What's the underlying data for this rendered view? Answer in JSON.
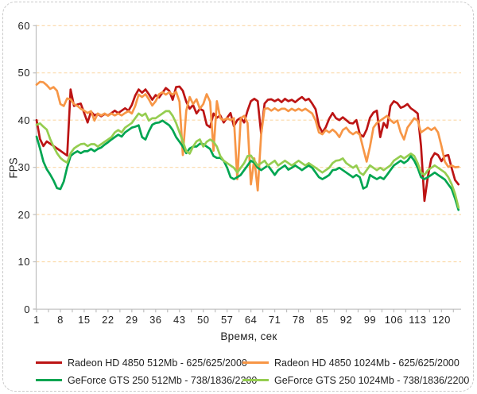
{
  "figure": {
    "background": "#ffffff",
    "border_color": "#c9c9c9",
    "axis_color": "#bfbfbf",
    "gridline_color": "#fbd8a6",
    "text_color": "#1f1f1f"
  },
  "chart_data": {
    "type": "line",
    "title": "",
    "xlabel": "Время, сек",
    "ylabel": "FPS",
    "xlim": [
      1,
      125
    ],
    "ylim": [
      0,
      60
    ],
    "x_ticks": [
      1,
      8,
      15,
      22,
      29,
      36,
      43,
      50,
      57,
      64,
      71,
      78,
      85,
      92,
      99,
      106,
      113,
      120
    ],
    "y_ticks": [
      0,
      10,
      20,
      30,
      40,
      50,
      60
    ],
    "grid": "horizontal-dashed",
    "legend_position": "bottom",
    "x_start": 1,
    "x_step": 1,
    "series": [
      {
        "name": "Radeon HD 4850 512Mb - 625/625/2000",
        "color": "#bc1414",
        "values": [
          40,
          36,
          34.5,
          35.5,
          35,
          34.5,
          34,
          33.5,
          33,
          32.5,
          46.5,
          43,
          43.3,
          43.5,
          41.5,
          39.5,
          41.8,
          41,
          41.3,
          40.8,
          41.3,
          41,
          41.5,
          42,
          41.5,
          42,
          42.5,
          42,
          43.2,
          45.2,
          46.5,
          45.8,
          46.5,
          45.5,
          44.3,
          45.3,
          44.8,
          45.8,
          46.8,
          46.2,
          44.3,
          47,
          47.1,
          46.2,
          43.9,
          42.4,
          43.2,
          41.4,
          42.4,
          42,
          39,
          38.5,
          41.4,
          40.5,
          41,
          39.5,
          40.5,
          41.5,
          38.7,
          40,
          40.5,
          39.5,
          42,
          44,
          44.5,
          44,
          37.1,
          43.5,
          44.3,
          44.4,
          44,
          44.4,
          43.8,
          44.5,
          44,
          44.3,
          43.8,
          44.4,
          44.9,
          44.2,
          44.5,
          43.5,
          42.3,
          38.8,
          37.4,
          38.5,
          40.3,
          41.5,
          40.4,
          40,
          40.6,
          40,
          39.4,
          39.3,
          40,
          37,
          36.5,
          38,
          40.5,
          41.6,
          42,
          36.4,
          39.4,
          38.4,
          43,
          44,
          43.6,
          42.6,
          42.9,
          43.4,
          42.5,
          42,
          41.4,
          34.5,
          22.9,
          28,
          31.8,
          33,
          32.6,
          31.3,
          32.4,
          32.6,
          29.8,
          27.3,
          26.4
        ]
      },
      {
        "name": "Radeon HD 4850 1024Mb - 625/625/2000",
        "color": "#f79646",
        "values": [
          47.5,
          48.1,
          48,
          47.4,
          46.6,
          47,
          46.2,
          43.4,
          43,
          44.6,
          44.4,
          43.4,
          43,
          42.4,
          42,
          41.5,
          41.9,
          39.9,
          41.4,
          41,
          41.4,
          40.9,
          41.4,
          41,
          41.4,
          41,
          41.5,
          41.9,
          41.4,
          43,
          45.4,
          44.9,
          45.5,
          44.4,
          43.1,
          44,
          45.5,
          45.9,
          45.4,
          45.9,
          45.4,
          46,
          43.9,
          32.6,
          42,
          44.9,
          43.4,
          44.4,
          42.4,
          43.4,
          45.5,
          43.9,
          33.5,
          44,
          40.4,
          40,
          40.4,
          40,
          40.4,
          27.5,
          40.4,
          40.9,
          39.4,
          26.4,
          31.9,
          25.1,
          37,
          42.4,
          42.5,
          42,
          42.5,
          42,
          42.4,
          42.4,
          41.9,
          42.4,
          42,
          42.4,
          42,
          42.4,
          41.9,
          41.4,
          39.9,
          37.4,
          37,
          37.9,
          37.4,
          38,
          37.4,
          36.4,
          37.9,
          38.4,
          37.5,
          37,
          37.5,
          36.9,
          34,
          31.2,
          34.4,
          38.4,
          39.4,
          39.9,
          40.4,
          40.9,
          40,
          39.4,
          39.9,
          37.4,
          35.9,
          38.4,
          39.4,
          40.4,
          39.9,
          37.4,
          37.9,
          38.4,
          37.9,
          38.4,
          37.4,
          34.5,
          31.2,
          30.1,
          30.4,
          30,
          30.1
        ]
      },
      {
        "name": "GeForce GTS 250 512Mb - 738/1836/2200",
        "color": "#00a551",
        "values": [
          36.5,
          34,
          31.2,
          29.6,
          28.5,
          27.2,
          25.6,
          25.4,
          27,
          30,
          32.4,
          33,
          33.4,
          33,
          33.4,
          33.4,
          33.9,
          33.4,
          33.9,
          34.2,
          34.8,
          35.3,
          35.9,
          36.4,
          36.9,
          36.5,
          37.4,
          37.9,
          38.4,
          38.6,
          38.9,
          36.4,
          35.9,
          37.6,
          39,
          39.4,
          39.5,
          39.9,
          39.4,
          38.9,
          37.9,
          36.4,
          35.4,
          34.4,
          33,
          34,
          34.4,
          34.4,
          35,
          34.9,
          34.4,
          33.9,
          32.4,
          32,
          32,
          31.4,
          29.9,
          27.9,
          27.5,
          27.9,
          28.4,
          29.4,
          30.4,
          31.4,
          31,
          29.9,
          29.4,
          29.9,
          30.4,
          29.4,
          28.4,
          29.4,
          29.9,
          30.4,
          29.5,
          29.9,
          30.4,
          29.9,
          29.4,
          29.9,
          30.4,
          29.9,
          28.9,
          27.9,
          27.5,
          27.9,
          28.4,
          29.4,
          29.5,
          29.9,
          29.4,
          28.9,
          28.4,
          27.9,
          28.4,
          27.9,
          25.5,
          25.9,
          28.4,
          27.9,
          27.5,
          27.9,
          27.5,
          28.4,
          29.4,
          30.4,
          30.9,
          31.4,
          30.9,
          31.4,
          32.4,
          31.4,
          29.9,
          27.9,
          27.5,
          27.9,
          28.4,
          28.9,
          28.4,
          27.9,
          27.4,
          26.4,
          25.4,
          23.4,
          21
        ]
      },
      {
        "name": "GeForce GTS 250 1024Mb - 738/1836/2200",
        "color": "#95cd50",
        "values": [
          39,
          39.3,
          38.6,
          38,
          36,
          34.4,
          33,
          32,
          31.4,
          31,
          33,
          34,
          34.5,
          34.9,
          35,
          34.5,
          34.9,
          34.9,
          34.4,
          34.9,
          35.4,
          35.9,
          36.4,
          37.4,
          37.9,
          37.4,
          38.4,
          38.9,
          39.4,
          40.4,
          41.4,
          40.9,
          41.4,
          39.9,
          40.4,
          40.4,
          40.9,
          41.4,
          41.9,
          41.9,
          40.9,
          39.4,
          37.4,
          35.5,
          33.4,
          32.9,
          34.4,
          35.5,
          35.9,
          34.4,
          35.4,
          35.9,
          35.4,
          34.4,
          32.4,
          31.4,
          30.9,
          30.4,
          29.9,
          28.9,
          29.9,
          30.9,
          32.4,
          32.5,
          31.4,
          30.4,
          30.9,
          31.4,
          30.4,
          30.9,
          31.4,
          30.4,
          30.9,
          31.4,
          30.9,
          30.4,
          30.9,
          31.4,
          30.9,
          30.4,
          30.9,
          30.4,
          29.9,
          29.4,
          28.9,
          29.4,
          29.9,
          30.9,
          31.4,
          31.5,
          31.9,
          30.9,
          30.4,
          29.9,
          30.4,
          28.9,
          28.4,
          29.4,
          30.4,
          29.9,
          29.4,
          29.9,
          29.4,
          29.9,
          30.4,
          31.4,
          31.9,
          32.4,
          31.9,
          32.4,
          32.9,
          32.4,
          30.9,
          28.9,
          28.4,
          29.4,
          29.9,
          30.4,
          29.9,
          29.4,
          28.9,
          27.9,
          26.4,
          24.4,
          21.5
        ]
      }
    ]
  }
}
